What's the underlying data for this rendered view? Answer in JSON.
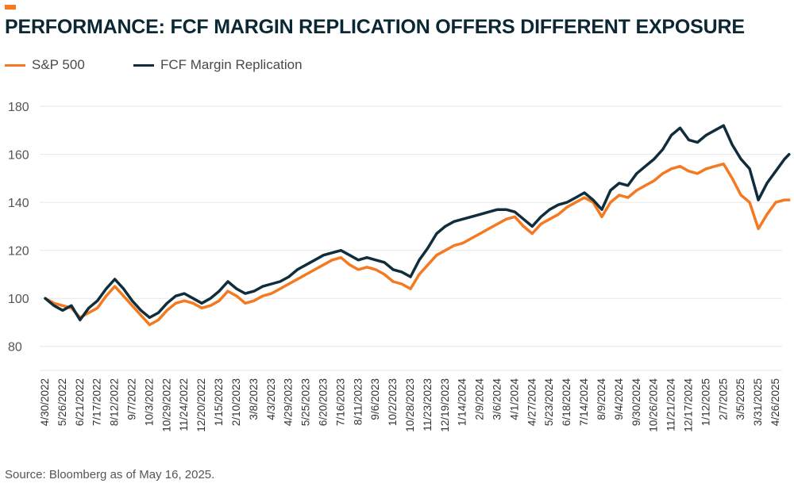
{
  "header": {
    "title": "PERFORMANCE: FCF MARGIN REPLICATION OFFERS DIFFERENT EXPOSURE",
    "accent_color": "#f47920"
  },
  "source": "Source: Bloomberg as of May 16, 2025.",
  "chart_data": {
    "type": "line",
    "title": "PERFORMANCE: FCF MARGIN REPLICATION OFFERS DIFFERENT EXPOSURE",
    "xlabel": "",
    "ylabel": "",
    "ylim": [
      70,
      182
    ],
    "yticks": [
      80,
      100,
      120,
      140,
      160,
      180
    ],
    "grid": true,
    "legend_position": "top-left",
    "x_tick_labels": [
      "4/30/2022",
      "5/26/2022",
      "6/21/2022",
      "7/17/2022",
      "8/12/2022",
      "9/7/2022",
      "10/3/2022",
      "10/29/2022",
      "11/24/2022",
      "12/20/2022",
      "1/15/2023",
      "2/10/2023",
      "3/8/2023",
      "4/3/2023",
      "4/29/2023",
      "5/25/2023",
      "6/20/2023",
      "7/16/2023",
      "8/11/2023",
      "9/6/2023",
      "10/2/2023",
      "10/28/2023",
      "11/23/2023",
      "12/19/2023",
      "1/14/2024",
      "2/9/2024",
      "3/6/2024",
      "4/1/2024",
      "4/27/2024",
      "5/23/2024",
      "6/18/2024",
      "7/14/2024",
      "8/9/2024",
      "9/4/2024",
      "9/30/2024",
      "10/26/2024",
      "11/21/2024",
      "12/17/2024",
      "1/12/2025",
      "2/7/2025",
      "3/5/2025",
      "3/31/2025",
      "4/26/2025"
    ],
    "x": [
      "4/30/2022",
      "5/13/2022",
      "5/26/2022",
      "6/8/2022",
      "6/21/2022",
      "7/4/2022",
      "7/17/2022",
      "7/30/2022",
      "8/12/2022",
      "8/25/2022",
      "9/7/2022",
      "9/20/2022",
      "10/3/2022",
      "10/16/2022",
      "10/29/2022",
      "11/11/2022",
      "11/24/2022",
      "12/7/2022",
      "12/20/2022",
      "1/2/2023",
      "1/15/2023",
      "1/28/2023",
      "2/10/2023",
      "2/23/2023",
      "3/8/2023",
      "3/21/2023",
      "4/3/2023",
      "4/16/2023",
      "4/29/2023",
      "5/12/2023",
      "5/25/2023",
      "6/7/2023",
      "6/20/2023",
      "7/3/2023",
      "7/16/2023",
      "7/29/2023",
      "8/11/2023",
      "8/24/2023",
      "9/6/2023",
      "9/19/2023",
      "10/2/2023",
      "10/15/2023",
      "10/28/2023",
      "11/10/2023",
      "11/23/2023",
      "12/6/2023",
      "12/19/2023",
      "1/1/2024",
      "1/14/2024",
      "1/27/2024",
      "2/9/2024",
      "2/22/2024",
      "3/6/2024",
      "3/19/2024",
      "4/1/2024",
      "4/14/2024",
      "4/27/2024",
      "5/10/2024",
      "5/23/2024",
      "6/5/2024",
      "6/18/2024",
      "7/1/2024",
      "7/14/2024",
      "7/27/2024",
      "8/9/2024",
      "8/22/2024",
      "9/4/2024",
      "9/17/2024",
      "9/30/2024",
      "10/13/2024",
      "10/26/2024",
      "11/8/2024",
      "11/21/2024",
      "12/4/2024",
      "12/17/2024",
      "12/30/2024",
      "1/12/2025",
      "1/25/2025",
      "2/7/2025",
      "2/20/2025",
      "3/5/2025",
      "3/18/2025",
      "3/31/2025",
      "4/13/2025",
      "4/26/2025",
      "5/9/2025",
      "5/16/2025"
    ],
    "series": [
      {
        "name": "S&P 500",
        "color": "#f47920",
        "values": [
          100,
          98,
          97,
          96,
          92,
          94,
          96,
          101,
          105,
          101,
          97,
          93,
          89,
          91,
          95,
          98,
          99,
          98,
          96,
          97,
          99,
          103,
          101,
          98,
          99,
          101,
          102,
          104,
          106,
          108,
          110,
          112,
          114,
          116,
          117,
          114,
          112,
          113,
          112,
          110,
          107,
          106,
          104,
          110,
          114,
          118,
          120,
          122,
          123,
          125,
          127,
          129,
          131,
          133,
          134,
          130,
          127,
          131,
          133,
          135,
          138,
          140,
          142,
          140,
          134,
          140,
          143,
          142,
          145,
          147,
          149,
          152,
          154,
          155,
          153,
          152,
          154,
          155,
          156,
          150,
          143,
          140,
          129,
          135,
          140,
          141,
          141
        ]
      },
      {
        "name": "FCF Margin Replication",
        "color": "#0f2d3b",
        "values": [
          100,
          97,
          95,
          97,
          91,
          96,
          99,
          104,
          108,
          104,
          99,
          95,
          92,
          94,
          98,
          101,
          102,
          100,
          98,
          100,
          103,
          107,
          104,
          102,
          103,
          105,
          106,
          107,
          109,
          112,
          114,
          116,
          118,
          119,
          120,
          118,
          116,
          117,
          116,
          115,
          112,
          111,
          109,
          116,
          121,
          127,
          130,
          132,
          133,
          134,
          135,
          136,
          137,
          137,
          136,
          133,
          130,
          134,
          137,
          139,
          140,
          142,
          144,
          141,
          137,
          145,
          148,
          147,
          152,
          155,
          158,
          162,
          168,
          171,
          166,
          165,
          168,
          170,
          172,
          164,
          158,
          154,
          141,
          148,
          153,
          158,
          160
        ]
      }
    ]
  }
}
